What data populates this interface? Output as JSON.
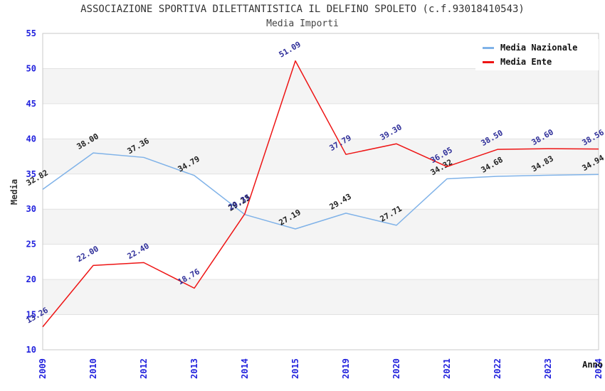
{
  "header": {
    "title": "ASSOCIAZIONE SPORTIVA DILETTANTISTICA IL DELFINO SPOLETO (c.f.93018410543)",
    "subtitle": "Media Importi"
  },
  "legend": {
    "items": [
      {
        "label": "Media Nazionale",
        "color": "#7fb2e8"
      },
      {
        "label": "Media Ente",
        "color": "#ee1414"
      }
    ]
  },
  "chart_data": {
    "type": "line",
    "title": "ASSOCIAZIONE SPORTIVA DILETTANTISTICA IL DELFINO SPOLETO (c.f.93018410543)",
    "subtitle": "Media Importi",
    "xlabel": "Anno",
    "ylabel": "Media",
    "categories": [
      "2009",
      "2010",
      "2012",
      "2013",
      "2014",
      "2015",
      "2019",
      "2020",
      "2021",
      "2022",
      "2023",
      "2024"
    ],
    "series": [
      {
        "name": "Media Nazionale",
        "color": "#7fb2e8",
        "label_color": "#222222",
        "values": [
          32.82,
          38.0,
          37.36,
          34.79,
          29.23,
          27.19,
          29.43,
          27.71,
          34.32,
          34.68,
          34.83,
          34.94
        ]
      },
      {
        "name": "Media Ente",
        "color": "#ee1414",
        "label_color": "#30309a",
        "values": [
          13.26,
          22.0,
          22.4,
          18.76,
          29.35,
          51.09,
          37.79,
          39.3,
          36.05,
          38.5,
          38.6,
          38.56
        ]
      }
    ],
    "ylim": [
      10,
      55
    ],
    "ytick_step": 5,
    "grid": true,
    "legend_position": "top-right",
    "colors": {
      "axis_tick_label": "#2222dd",
      "band_fill": "#f4f4f4",
      "grid_line": "#e2e2e2",
      "plot_border": "#c9c9c9",
      "axis_title": "#333333"
    }
  }
}
